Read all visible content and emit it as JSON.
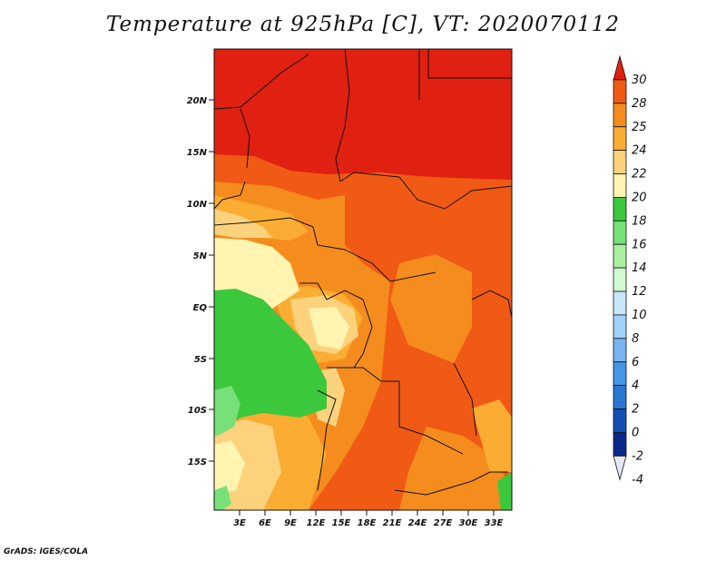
{
  "title": "Temperature at 925hPa [C], VT: 2020070112",
  "credit": "GrADS: IGES/COLA",
  "map": {
    "lat_ticks": [
      "20N",
      "15N",
      "10N",
      "5N",
      "EQ",
      "5S",
      "10S",
      "15S"
    ],
    "lon_ticks": [
      "3E",
      "6E",
      "9E",
      "12E",
      "15E",
      "18E",
      "21E",
      "24E",
      "27E",
      "30E",
      "33E"
    ]
  },
  "colorbar": {
    "labels": [
      "30",
      "28",
      "25",
      "24",
      "22",
      "20",
      "18",
      "16",
      "14",
      "12",
      "10",
      "8",
      "6",
      "4",
      "2",
      "0",
      "-2",
      "-4"
    ],
    "colors": [
      "#e02010",
      "#f05a14",
      "#f58c1e",
      "#faad32",
      "#fcd27d",
      "#fff4b0",
      "#3cc83c",
      "#78e078",
      "#a8f0a0",
      "#d2fad2",
      "#c8e6fa",
      "#a0d2fa",
      "#78b4f0",
      "#4696e6",
      "#2878d2",
      "#1450b4",
      "#0a288c",
      "#e6e6fa"
    ]
  },
  "colors": {
    "hot": "#e02010",
    "warm_red": "#f05a14",
    "orange": "#f58c1e",
    "light_orange": "#faad32",
    "tan": "#fcd27d",
    "cream": "#fff4b0",
    "green": "#3cc83c",
    "light_green": "#78e078",
    "pale_green": "#a8f0a0"
  }
}
